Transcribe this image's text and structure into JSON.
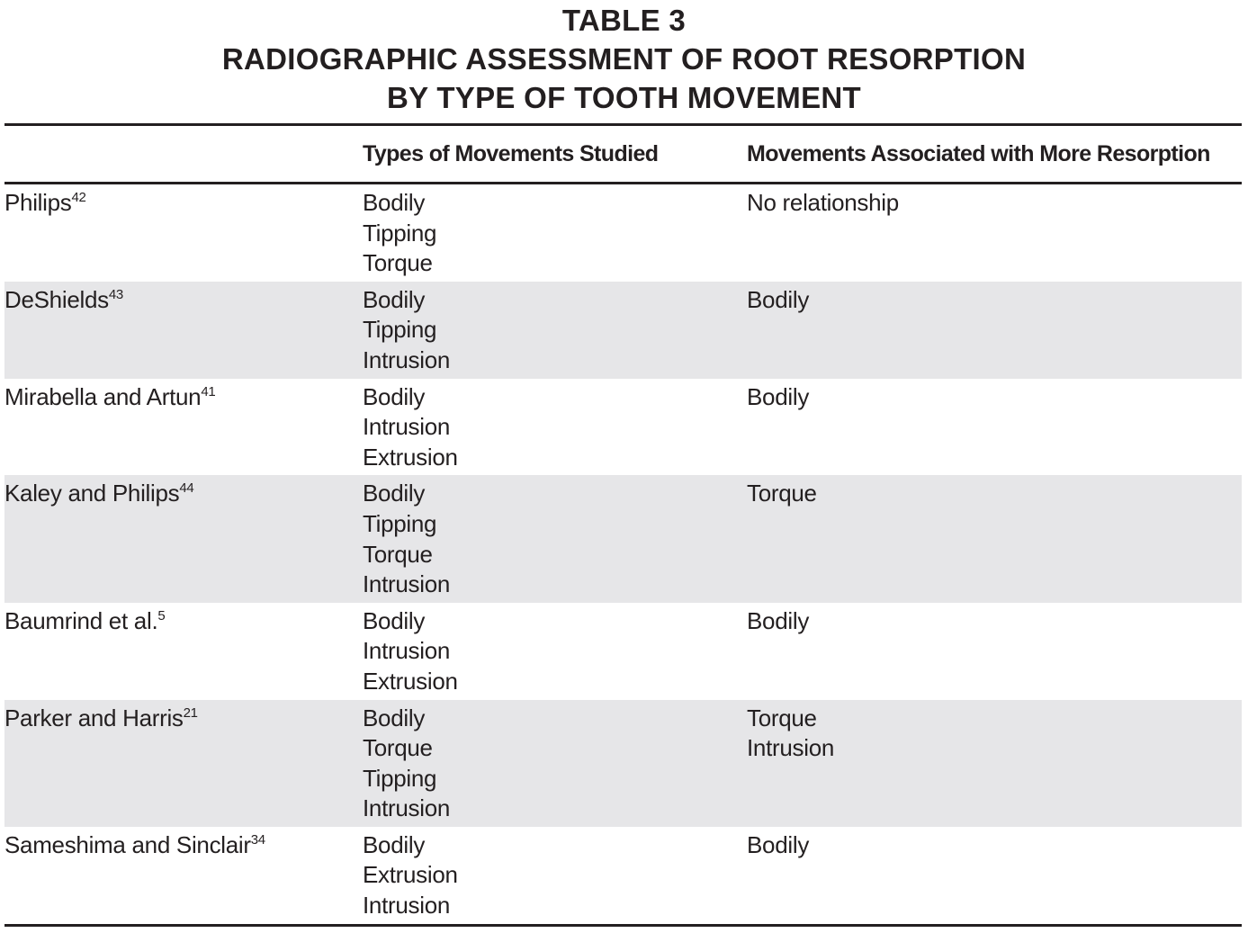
{
  "title": [
    "TABLE 3",
    "RADIOGRAPHIC ASSESSMENT OF ROOT RESORPTION",
    "BY TYPE OF TOOTH MOVEMENT"
  ],
  "table": {
    "headers": [
      "Types of Movements Studied",
      "Movements Associated with More Resorption"
    ],
    "rows": [
      {
        "study": "Philips",
        "ref": "42",
        "studied": [
          "Bodily",
          "Tipping",
          "Torque"
        ],
        "associated": [
          "No relationship"
        ]
      },
      {
        "study": "DeShields",
        "ref": "43",
        "studied": [
          "Bodily",
          "Tipping",
          "Intrusion"
        ],
        "associated": [
          "Bodily"
        ]
      },
      {
        "study": "Mirabella and Artun",
        "ref": "41",
        "studied": [
          "Bodily",
          "Intrusion",
          "Extrusion"
        ],
        "associated": [
          "Bodily"
        ]
      },
      {
        "study": "Kaley and Philips",
        "ref": "44",
        "studied": [
          "Bodily",
          "Tipping",
          "Torque",
          "Intrusion"
        ],
        "associated": [
          "Torque"
        ]
      },
      {
        "study": "Baumrind et al.",
        "ref": "5",
        "studied": [
          "Bodily",
          "Intrusion",
          "Extrusion"
        ],
        "associated": [
          "Bodily"
        ]
      },
      {
        "study": "Parker and Harris",
        "ref": "21",
        "studied": [
          "Bodily",
          "Torque",
          "Tipping",
          "Intrusion"
        ],
        "associated": [
          "Torque",
          "Intrusion"
        ]
      },
      {
        "study": "Sameshima and Sinclair",
        "ref": "34",
        "studied": [
          "Bodily",
          "Extrusion",
          "Intrusion"
        ],
        "associated": [
          "Bodily"
        ]
      }
    ]
  }
}
